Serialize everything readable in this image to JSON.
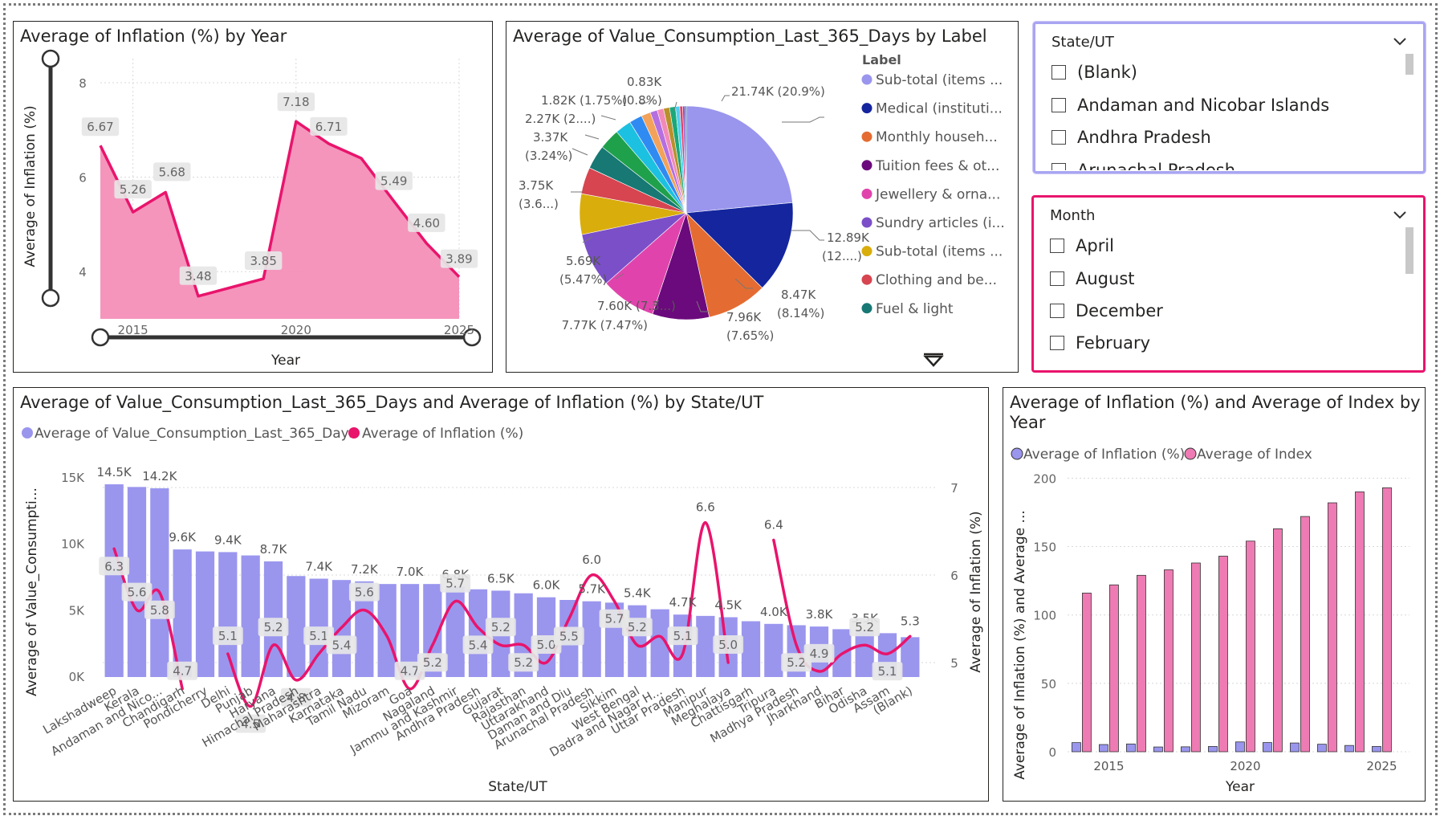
{
  "colors": {
    "pink_line": "#e9146c",
    "pink_area": "#f48fb8",
    "lavender": "#9a96ee",
    "index_pink": "#ee7bb3"
  },
  "chart1": {
    "title": "Average of Inflation (%) by Year",
    "xlabel": "Year",
    "ylabel": "Average of Inflation (%)",
    "yticks": [
      "8",
      "6",
      "4"
    ],
    "xticks": [
      "2015",
      "2020",
      "2025"
    ]
  },
  "chart2": {
    "title": "Average of Value_Consumption_Last_365_Days by Label",
    "legend_title": "Label",
    "legend": [
      "Sub-total (items ...",
      "Medical (instituti...",
      "Monthly househ...",
      "Tuition fees & ot...",
      "Jewellery & orna...",
      "Sundry articles (i...",
      "Sub-total (items ...",
      "Clothing and be...",
      "Fuel & light"
    ],
    "labels": {
      "l1": "21.74K (20.9%)",
      "l2a": "12.89K",
      "l2b": "(12....)",
      "l3a": "8.47K",
      "l3b": "(8.14%)",
      "l4a": "7.96K",
      "l4b": "(7.65%)",
      "l5": "7.77K (7.47%)",
      "l6": "7.60K (7.3...)",
      "l7a": "5.69K",
      "l7b": "(5.47%)",
      "l8a": "3.75K",
      "l8b": "(3.6...)",
      "l9a": "3.37K",
      "l9b": "(3.24%)",
      "l10": "2.27K (2....)",
      "l11": "1.82K (1.75%)",
      "l12": "(0.8%)",
      "l13": "0.83K"
    }
  },
  "slicer_state": {
    "header": "State/UT",
    "items": [
      "(Blank)",
      "Andaman and Nicobar Islands",
      "Andhra Pradesh",
      "Arunachal Pradesh"
    ]
  },
  "slicer_month": {
    "header": "Month",
    "items": [
      "April",
      "August",
      "December",
      "February"
    ]
  },
  "chart3": {
    "title": "Average of Value_Consumption_Last_365_Days and Average of Inflation (%) by State/UT",
    "legend": [
      "Average of Value_Consumption_Last_365_Days",
      "Average of Inflation (%)"
    ],
    "xlabel": "State/UT",
    "ylabel_left": "Average of Value_Consumpti...",
    "ylabel_right": "Average of Inflation (%)",
    "yticks_left": [
      "15K",
      "10K",
      "5K",
      "0K"
    ],
    "yticks_right": [
      "7",
      "6",
      "5"
    ]
  },
  "chart4": {
    "title_line1": "Average of Inflation (%) and Average of Index by",
    "title_line2": "Year",
    "legend": [
      "Average of Inflation (%)",
      "Average of Index"
    ],
    "xlabel": "Year",
    "ylabel": "Average of Inflation (%) and Average ...",
    "yticks": [
      "200",
      "150",
      "100",
      "50",
      "0"
    ],
    "xticks": [
      "2015",
      "2020",
      "2025"
    ]
  },
  "chart_data": [
    {
      "type": "area",
      "title": "Average of Inflation (%) by Year",
      "xlabel": "Year",
      "ylabel": "Average of Inflation (%)",
      "x": [
        2014,
        2015,
        2016,
        2017,
        2019,
        2020,
        2021,
        2022,
        2023,
        2024,
        2025
      ],
      "values": [
        6.67,
        5.26,
        5.68,
        3.48,
        3.85,
        7.18,
        6.71,
        6.4,
        5.49,
        4.6,
        3.89
      ],
      "data_labels": [
        "6.67",
        "5.26",
        "5.68",
        "3.48",
        "3.85",
        "7.18",
        "6.71",
        "",
        "5.49",
        "4.60",
        "3.89"
      ],
      "ylim": [
        3,
        8
      ],
      "xlim": [
        2014,
        2025
      ]
    },
    {
      "type": "pie",
      "title": "Average of Value_Consumption_Last_365_Days by Label",
      "slices": [
        {
          "label": "Sub-total (items ...",
          "value": 21.74,
          "color": "#9a96ee"
        },
        {
          "label": "Medical (instituti...",
          "value": 12.89,
          "color": "#14259e"
        },
        {
          "label": "Monthly househ...",
          "value": 8.47,
          "color": "#e46c32"
        },
        {
          "label": "Tuition fees & ot...",
          "value": 7.96,
          "color": "#6b0a7c"
        },
        {
          "label": "Jewellery & orna...",
          "value": 7.77,
          "color": "#e044ac"
        },
        {
          "label": "Sundry articles (i...",
          "value": 7.6,
          "color": "#7b4fc8"
        },
        {
          "label": "Sub-total (items ...",
          "value": 5.69,
          "color": "#d9ad0c"
        },
        {
          "label": "Clothing and be...",
          "value": 3.75,
          "color": "#d64550"
        },
        {
          "label": "Fuel & light",
          "value": 3.37,
          "color": "#177874"
        },
        {
          "label": "",
          "value": 2.9,
          "color": "#1fa14c"
        },
        {
          "label": "",
          "value": 2.27,
          "color": "#1cc0e0"
        },
        {
          "label": "",
          "value": 1.82,
          "color": "#2f8bf2"
        },
        {
          "label": "",
          "value": 1.3,
          "color": "#f2a25a"
        },
        {
          "label": "",
          "value": 1.0,
          "color": "#b56fe0"
        },
        {
          "label": "",
          "value": 0.9,
          "color": "#f28ab8"
        },
        {
          "label": "",
          "value": 0.85,
          "color": "#b9902c"
        },
        {
          "label": "",
          "value": 0.83,
          "color": "#1aa87a"
        },
        {
          "label": "",
          "value": 0.6,
          "color": "#4ed0f0"
        },
        {
          "label": "",
          "value": 0.4,
          "color": "#e63c6a"
        },
        {
          "label": "",
          "value": 0.3,
          "color": "#7f4fc0"
        },
        {
          "label": "",
          "value": 0.2,
          "color": "#1f6f7a"
        }
      ]
    },
    {
      "type": "bar",
      "title": "Average of Value_Consumption_Last_365_Days and Average of Inflation (%) by State/UT",
      "categories": [
        "Lakshadweep",
        "Kerala",
        "Andaman and Nico...",
        "Chandigarh",
        "Pondicherry",
        "Delhi",
        "Punjab",
        "Haryana",
        "Himachal Pradesh",
        "Maharashtra",
        "Karnataka",
        "Tamil Nadu",
        "Mizoram",
        "Goa",
        "Nagaland",
        "Jammu and Kashmir",
        "Andhra Pradesh",
        "Gujarat",
        "Rajasthan",
        "Uttarakhand",
        "Daman and Diu",
        "Arunachal Pradesh",
        "Sikkim",
        "West Bengal",
        "Dadra and Nagar H...",
        "Uttar Pradesh",
        "Manipur",
        "Meghalaya",
        "Chattisgarh",
        "Tripura",
        "Madhya Pradesh",
        "Jharkhand",
        "Bihar",
        "Odisha",
        "Assam",
        "(Blank)"
      ],
      "series": [
        {
          "name": "Average of Value_Consumption_Last_365_Days",
          "axis": "left",
          "values": [
            14.5,
            14.3,
            14.2,
            9.6,
            9.45,
            9.4,
            9.15,
            8.7,
            7.6,
            7.4,
            7.3,
            7.2,
            7.0,
            7.0,
            7.0,
            6.8,
            6.6,
            6.5,
            6.3,
            6.0,
            5.8,
            5.7,
            5.6,
            5.4,
            5.1,
            4.7,
            4.6,
            4.5,
            4.2,
            4.0,
            3.9,
            3.8,
            3.6,
            3.5,
            3.3,
            3.0
          ],
          "data_labels": [
            "14.5K",
            "",
            "14.2K",
            "9.6K",
            "",
            "9.4K",
            "",
            "8.7K",
            "",
            "7.4K",
            "",
            "7.2K",
            "",
            "7.0K",
            "",
            "6.8K",
            "",
            "6.5K",
            "",
            "6.0K",
            "",
            "5.7K",
            "",
            "5.4K",
            "",
            "4.7K",
            "",
            "4.5K",
            "",
            "4.0K",
            "",
            "3.8K",
            "",
            "3.5K",
            "",
            ""
          ]
        },
        {
          "name": "Average of Inflation (%)",
          "axis": "right",
          "values": [
            6.3,
            5.6,
            5.8,
            4.7,
            null,
            5.1,
            4.5,
            5.2,
            4.8,
            5.1,
            5.4,
            5.6,
            5.3,
            4.7,
            5.2,
            5.7,
            5.4,
            5.2,
            5.2,
            5.0,
            5.5,
            6.0,
            5.7,
            5.2,
            5.3,
            5.1,
            6.6,
            5.0,
            null,
            6.4,
            5.2,
            4.9,
            5.1,
            5.2,
            5.1,
            5.3
          ],
          "data_labels": [
            "6.3",
            "5.6",
            "5.8",
            "4.7",
            "",
            "5.1",
            "4.5",
            "5.2",
            "4.8",
            "5.1",
            "5.4",
            "5.6",
            "",
            "4.7",
            "5.2",
            "5.7",
            "5.4",
            "5.2",
            "5.2",
            "5.0",
            "5.5",
            "6.0",
            "5.7",
            "5.2",
            "",
            "5.1",
            "6.6",
            "5.0",
            "",
            "6.4",
            "5.2",
            "4.9",
            "",
            "5.2",
            "5.1",
            "5.3"
          ]
        }
      ],
      "ylim_left": [
        0,
        15
      ],
      "ylim_right": [
        5,
        7
      ]
    },
    {
      "type": "bar",
      "title": "Average of Inflation (%) and Average of Index by Year",
      "categories": [
        2014,
        2015,
        2016,
        2017,
        2018,
        2019,
        2020,
        2021,
        2022,
        2023,
        2024,
        2025
      ],
      "series": [
        {
          "name": "Average of Inflation (%)",
          "values": [
            6.67,
            5.26,
            5.68,
            3.48,
            3.6,
            3.85,
            7.18,
            6.71,
            6.4,
            5.49,
            4.6,
            3.89
          ]
        },
        {
          "name": "Average of Index",
          "values": [
            116,
            122,
            129,
            133,
            138,
            143,
            154,
            163,
            172,
            182,
            190,
            193
          ]
        }
      ],
      "ylim": [
        0,
        200
      ]
    }
  ]
}
